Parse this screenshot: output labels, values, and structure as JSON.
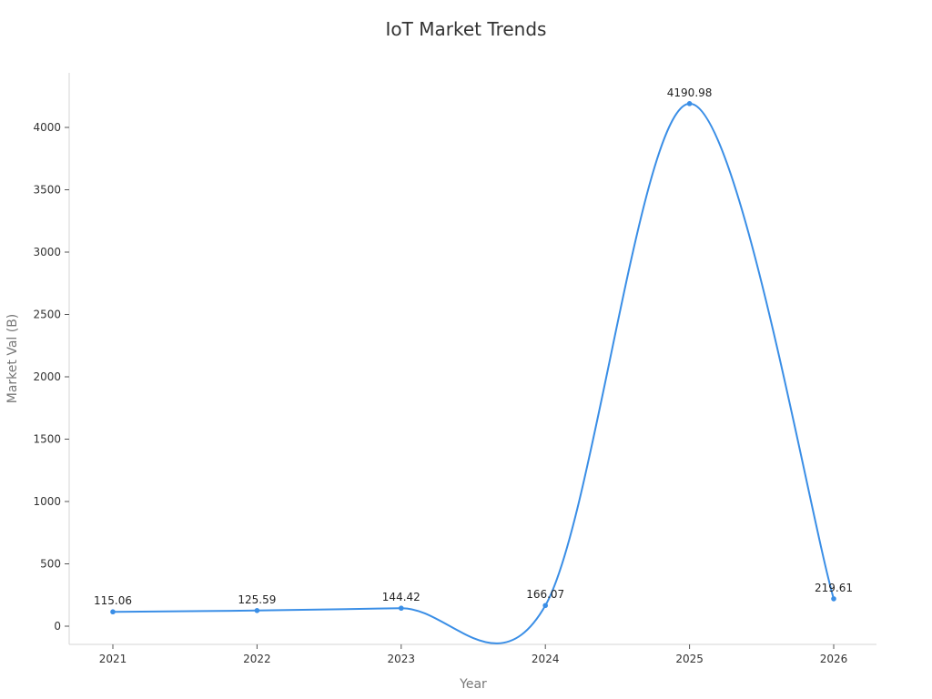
{
  "chart_data": {
    "type": "line",
    "title": "IoT Market Trends",
    "xlabel": "Year",
    "ylabel": "Market Val (B)",
    "categories": [
      "2021",
      "2022",
      "2023",
      "2024",
      "2025",
      "2026"
    ],
    "series": [
      {
        "name": "Market Val (B)",
        "values": [
          115.06,
          125.59,
          144.42,
          166.07,
          4190.98,
          219.61
        ],
        "color": "#3a8ee6",
        "smooth": true,
        "markers": true,
        "data_labels": [
          "115.06",
          "125.59",
          "144.42",
          "166.07",
          "4190.98",
          "219.61"
        ]
      }
    ],
    "y_ticks": [
      0,
      500,
      1000,
      1500,
      2000,
      2500,
      3000,
      3500,
      4000
    ],
    "ylim": [
      -140,
      4400
    ],
    "grid": false,
    "legend": "none"
  }
}
